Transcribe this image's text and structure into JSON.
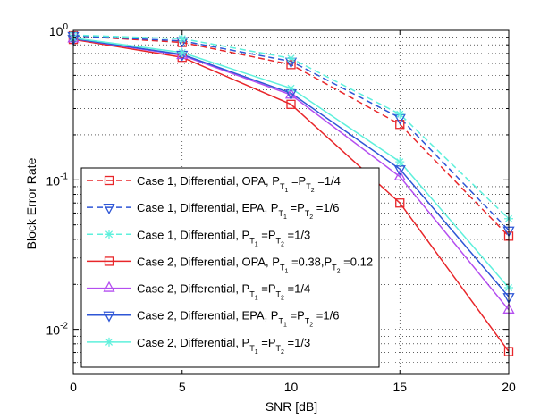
{
  "chart_data": {
    "type": "line",
    "title": "",
    "xlabel": "SNR [dB]",
    "ylabel": "Block Error Rate",
    "x": [
      0,
      5,
      10,
      15,
      20
    ],
    "xlim": [
      0,
      20
    ],
    "ylim": [
      0.005,
      1
    ],
    "yscale": "log",
    "grid": true,
    "legend_position": "lower-left",
    "x_ticks": [
      {
        "value": 0,
        "label": "0"
      },
      {
        "value": 5,
        "label": "5"
      },
      {
        "value": 10,
        "label": "10"
      },
      {
        "value": 15,
        "label": "15"
      },
      {
        "value": 20,
        "label": "20"
      }
    ],
    "y_ticks": [
      {
        "value": 1,
        "base": "10",
        "exp": "0"
      },
      {
        "value": 0.1,
        "base": "10",
        "exp": "-1"
      },
      {
        "value": 0.01,
        "base": "10",
        "exp": "-2"
      }
    ],
    "series": [
      {
        "name": "Case 1, Differential, OPA, P_T1=P_T2=1/4",
        "label_parts": [
          "Case 1, Differential, OPA, P",
          "T",
          "1",
          " =P",
          "T",
          "2",
          " =1/4"
        ],
        "color": "#e8262a",
        "dash": "dashed",
        "marker": "square",
        "values": [
          0.92,
          0.83,
          0.59,
          0.235,
          0.042
        ]
      },
      {
        "name": "Case 1, Differential, EPA, P_T1=P_T2=1/6",
        "label_parts": [
          "Case 1, Differential, EPA, P",
          "T",
          "1",
          " =P",
          "T",
          "2",
          " =1/6"
        ],
        "color": "#2e56d6",
        "dash": "dashed",
        "marker": "triangle-down",
        "values": [
          0.92,
          0.85,
          0.62,
          0.26,
          0.046
        ]
      },
      {
        "name": "Case 1, Differential, P_T1=P_T2=1/3",
        "label_parts": [
          "Case 1, Differential, P",
          "T",
          "1",
          " =P",
          "T",
          "2",
          " =1/3"
        ],
        "color": "#5ef0dc",
        "dash": "dashed",
        "marker": "star",
        "values": [
          0.93,
          0.88,
          0.65,
          0.275,
          0.055
        ]
      },
      {
        "name": "Case 2, Differential, OPA, P_T1=0.38, P_T2=0.12",
        "label_parts": [
          "Case 2, Differential, OPA, P",
          "T",
          "1",
          " =0.38,P",
          "T",
          "2",
          " =0.12"
        ],
        "color": "#e8262a",
        "dash": "solid",
        "marker": "square",
        "values": [
          0.87,
          0.66,
          0.32,
          0.07,
          0.0071
        ]
      },
      {
        "name": "Case 2, Differential, P_T1=P_T2=1/4",
        "label_parts": [
          "Case 2, Differential, P",
          "T",
          "1",
          " =P",
          "T",
          "2",
          " =1/4"
        ],
        "color": "#b44ef0",
        "dash": "solid",
        "marker": "triangle-up",
        "values": [
          0.88,
          0.68,
          0.37,
          0.105,
          0.0135
        ]
      },
      {
        "name": "Case 2, Differential, EPA, P_T1=P_T2=1/6",
        "label_parts": [
          "Case 2, Differential, EPA, P",
          "T",
          "1",
          " =P",
          "T",
          "2",
          " =1/6"
        ],
        "color": "#2e56d6",
        "dash": "solid",
        "marker": "triangle-down",
        "values": [
          0.88,
          0.69,
          0.38,
          0.118,
          0.0165
        ]
      },
      {
        "name": "Case 2, Differential, P_T1=P_T2=1/3",
        "label_parts": [
          "Case 2, Differential, P",
          "T",
          "1",
          " =P",
          "T",
          "2",
          " =1/3"
        ],
        "color": "#5ef0dc",
        "dash": "solid",
        "marker": "star",
        "values": [
          0.89,
          0.71,
          0.41,
          0.132,
          0.019
        ]
      }
    ]
  }
}
